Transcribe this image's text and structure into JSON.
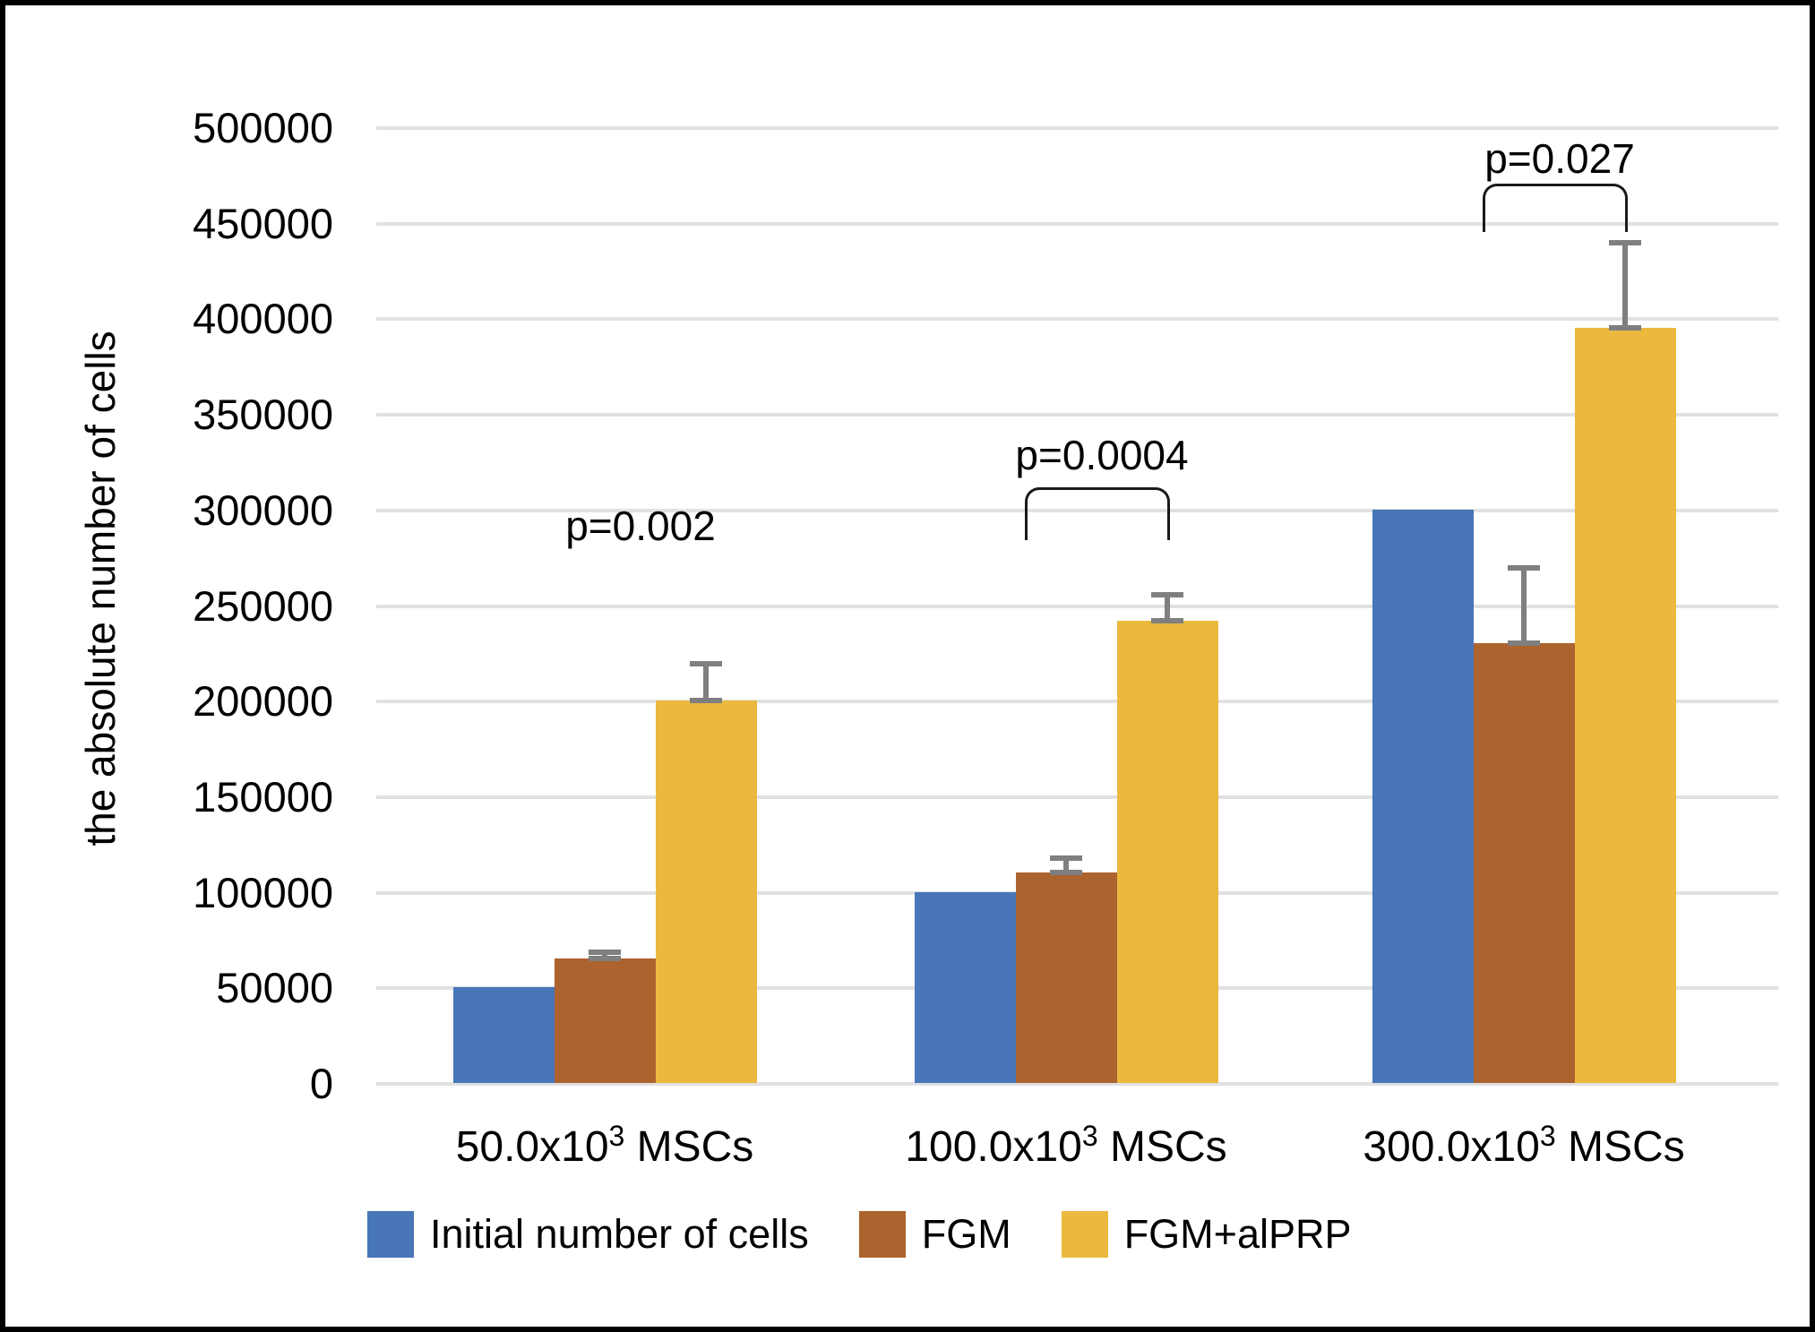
{
  "figure": {
    "background": "#ffffff",
    "border_color": "#000000"
  },
  "chart_data": {
    "type": "bar",
    "title": "",
    "xlabel": "",
    "ylabel": "the absolute number of cells",
    "ylim": [
      0,
      500000
    ],
    "ytick_step": 50000,
    "ytick_labels": [
      "0",
      "50000",
      "100000",
      "150000",
      "200000",
      "250000",
      "300000",
      "350000",
      "400000",
      "450000",
      "500000"
    ],
    "grid": true,
    "gridline_color": "#E1E1E1",
    "error_bar_color": "#7F7F7F",
    "legend_position": "bottom",
    "categories": [
      {
        "base": "50.0x10",
        "sup": "3",
        "suffix": " MSCs"
      },
      {
        "base": "100.0x10",
        "sup": "3",
        "suffix": " MSCs"
      },
      {
        "base": "300.0x10",
        "sup": "3",
        "suffix": " MSCs"
      }
    ],
    "series": [
      {
        "name": "Initial number of cells",
        "color": "#4876B8",
        "values": [
          50000,
          100000,
          300000
        ],
        "errors_plus": [
          0,
          0,
          0
        ]
      },
      {
        "name": "FGM",
        "color": "#AC632E",
        "values": [
          65000,
          110000,
          230000
        ],
        "errors_plus": [
          4000,
          8000,
          40000
        ]
      },
      {
        "name": "FGM+alPRP",
        "color": "#EBB93E",
        "values": [
          200000,
          242000,
          395000
        ],
        "errors_plus": [
          20000,
          14000,
          45000
        ]
      }
    ],
    "annotations": [
      {
        "label": "p=0.002",
        "group_index": 0,
        "bracket": false,
        "label_y_value": 292000
      },
      {
        "label": "p=0.0004",
        "group_index": 1,
        "bracket": true,
        "label_y_value": 329000,
        "bracket_top_value": 312000,
        "bracket_drop_value": 26000
      },
      {
        "label": "p=0.027",
        "group_index": 2,
        "bracket": true,
        "label_y_value": 484000,
        "bracket_top_value": 471000,
        "bracket_drop_value": 24000
      }
    ]
  }
}
